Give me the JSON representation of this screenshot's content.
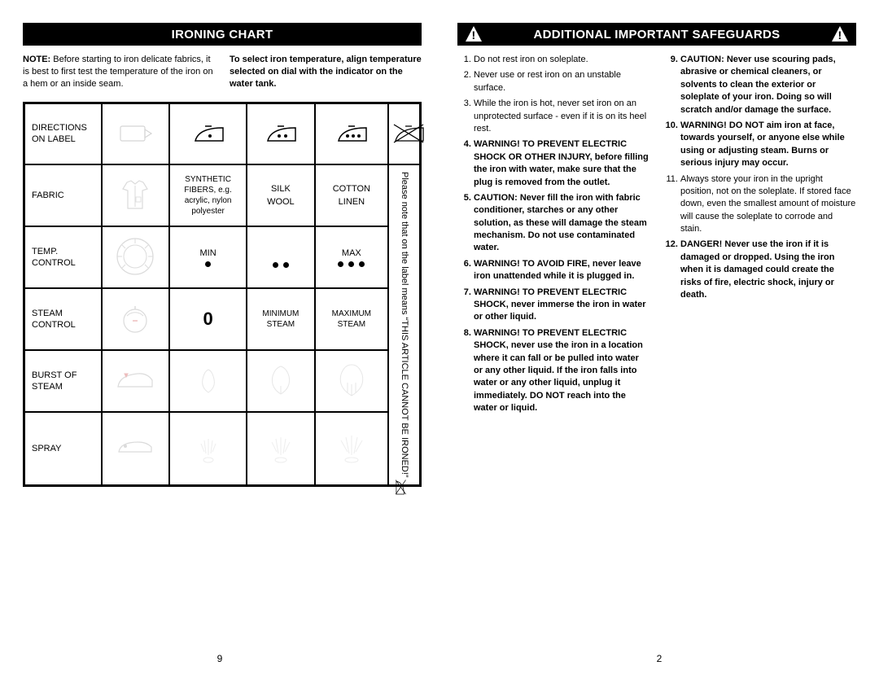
{
  "left_page": {
    "title": "IRONING CHART",
    "note_label": "NOTE:",
    "note_text": "Before starting to iron delicate fabrics, it is best to first test the temperature of the iron on a hem or an inside seam.",
    "intro_bold": "To select iron temperature, align temperature selected on dial with the indicator on the water tank.",
    "rows": {
      "directions": "DIRECTIONS ON LABEL",
      "fabric": "FABRIC",
      "temp": "TEMP. CONTROL",
      "steam": "STEAM CONTROL",
      "burst": "BURST OF STEAM",
      "spray": "SPRAY"
    },
    "fabric_a": "SYNTHETIC FIBERS, e.g. acrylic, nylon polyester",
    "fabric_b1": "SILK",
    "fabric_b2": "WOOL",
    "fabric_c1": "COTTON",
    "fabric_c2": "LINEN",
    "temp_min": "MIN",
    "temp_max": "MAX",
    "steam_zero": "0",
    "steam_min": "MINIMUM STEAM",
    "steam_max": "MAXIMUM STEAM",
    "vertical_note": "Please note that          on the label means “THIS ARTICLE CANNOT BE IRONED!”",
    "page_num": "9"
  },
  "right_page": {
    "title": "ADDITIONAL IMPORTANT SAFEGUARDS",
    "list_left": [
      {
        "n": "1",
        "t": "Do not rest iron on soleplate.",
        "b": false
      },
      {
        "n": "2",
        "t": "Never use or rest iron on an unstable surface.",
        "b": false
      },
      {
        "n": "3",
        "t": "While the iron is hot, never set iron on an unprotected surface - even if it is on its heel rest.",
        "b": false
      },
      {
        "n": "4",
        "t": "WARNING! TO PREVENT ELECTRIC SHOCK OR OTHER INJURY, before filling the iron with water, make sure that the plug is removed from the outlet.",
        "b": true
      },
      {
        "n": "5",
        "t": "CAUTION: Never fill the iron with fabric conditioner, starches or any other solution, as these will damage the steam mechanism. Do not use contaminated water.",
        "b": true
      },
      {
        "n": "6",
        "t": "WARNING! TO AVOID FIRE, never leave iron unattended while it is plugged in.",
        "b": true
      },
      {
        "n": "7",
        "t": "WARNING! TO PREVENT ELECTRIC SHOCK, never immerse the iron in water or other liquid.",
        "b": true
      },
      {
        "n": "8",
        "t": "WARNING! TO PREVENT ELECTRIC SHOCK, never use the iron in a location where it can fall or be pulled into water or any other liquid. If the iron falls into water or any other liquid, unplug it immediately. DO NOT reach into the water or liquid.",
        "b": true
      }
    ],
    "list_right": [
      {
        "n": "9",
        "t": "CAUTION: Never use scouring pads, abrasive or chemical cleaners, or solvents to clean the exterior or soleplate of your iron. Doing so will scratch and/or damage the surface.",
        "b": true
      },
      {
        "n": "10",
        "t": "WARNING! DO NOT aim iron at face, towards yourself, or anyone else while using or adjusting steam. Burns or serious injury may occur.",
        "b": true
      },
      {
        "n": "11",
        "t": "Always store your iron in the upright position, not on the soleplate. If stored face down, even the smallest amount of moisture will cause the soleplate to corrode and stain.",
        "b": false
      },
      {
        "n": "12",
        "t": "DANGER! Never use the iron if it is damaged or dropped. Using the iron when it is damaged could create the risks of fire, electric shock, injury or death.",
        "b": true
      }
    ],
    "page_num": "2"
  }
}
